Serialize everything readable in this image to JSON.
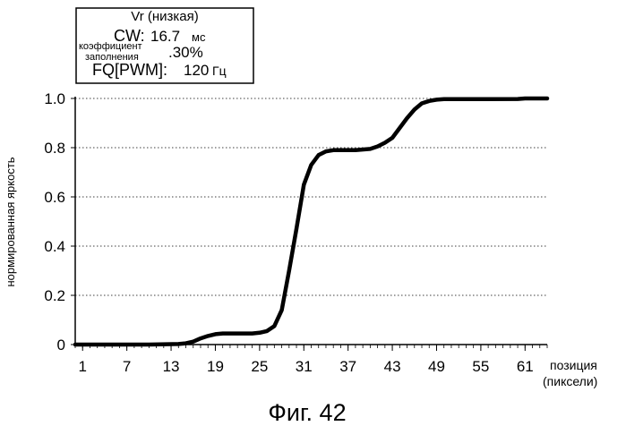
{
  "legend_box": {
    "line1": "Vr (низкая)",
    "cw_label": "CW:",
    "cw_value": "16.7",
    "cw_unit": "мс",
    "duty_label_1": "коэффициент",
    "duty_label_2": "заполнения",
    "duty_value": ".30%",
    "fq_label": "FQ[PWM]:",
    "fq_value": "120",
    "fq_unit": "Гц"
  },
  "figure_caption": "Фиг. 42",
  "chart_data": {
    "type": "line",
    "ylabel": "нормированная яркость",
    "xlabel_line1": "позиция",
    "xlabel_line2": "(пиксели)",
    "xlim": [
      0,
      64
    ],
    "ylim": [
      0,
      1.0
    ],
    "x_tick_labels": [
      "1",
      "7",
      "13",
      "19",
      "25",
      "31",
      "37",
      "43",
      "49",
      "55",
      "61"
    ],
    "x_tick_values": [
      1,
      7,
      13,
      19,
      25,
      31,
      37,
      43,
      49,
      55,
      61
    ],
    "y_tick_labels": [
      "0",
      "0.2",
      "0.4",
      "0.6",
      "0.8",
      "1.0"
    ],
    "y_tick_values": [
      0,
      0.2,
      0.4,
      0.6,
      0.8,
      1.0
    ],
    "grid": "horizontal dotted",
    "line_color": "#000000",
    "series": [
      {
        "x": [
          0,
          5,
          10,
          14,
          15,
          16,
          17,
          18,
          19,
          20,
          22,
          24,
          25,
          26,
          27,
          28,
          29,
          30,
          31,
          32,
          33,
          34,
          35,
          36,
          38,
          40,
          41,
          42,
          43,
          44,
          45,
          46,
          47,
          48,
          49,
          50,
          55,
          60,
          61,
          62,
          63,
          64
        ],
        "y": [
          0,
          0,
          0,
          0.002,
          0.005,
          0.012,
          0.025,
          0.035,
          0.042,
          0.045,
          0.045,
          0.045,
          0.048,
          0.055,
          0.075,
          0.14,
          0.3,
          0.47,
          0.65,
          0.73,
          0.77,
          0.785,
          0.79,
          0.79,
          0.79,
          0.795,
          0.805,
          0.82,
          0.84,
          0.88,
          0.92,
          0.955,
          0.98,
          0.99,
          0.995,
          0.997,
          0.997,
          0.998,
          1.0,
          1.0,
          1.0,
          1.0
        ]
      }
    ]
  }
}
